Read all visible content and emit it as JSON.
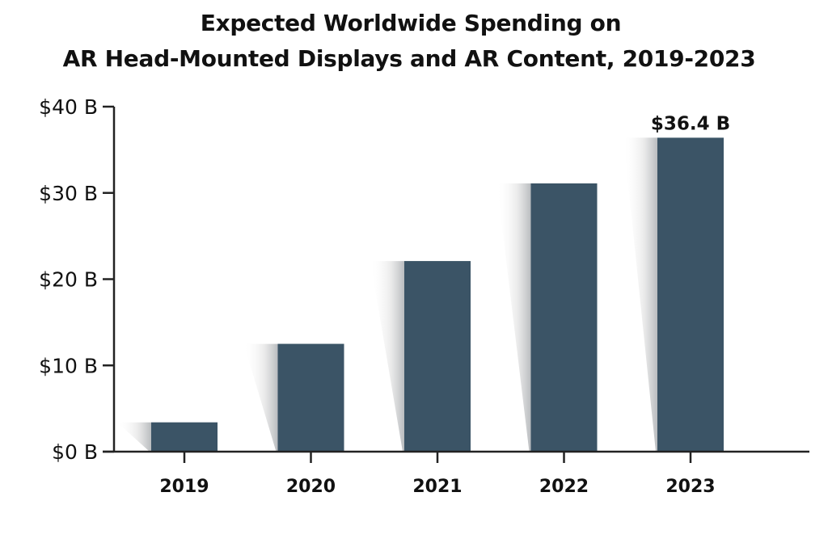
{
  "chart_data": {
    "type": "bar",
    "title": "Expected Worldwide Spending on AR Head-Mounted Displays and AR Content, 2019-2023",
    "title_lines": [
      "Expected Worldwide Spending on",
      "AR Head-Mounted Displays and AR Content, 2019-2023"
    ],
    "xlabel": "",
    "ylabel": "",
    "categories": [
      "2019",
      "2020",
      "2021",
      "2022",
      "2023"
    ],
    "values": [
      3.4,
      12.5,
      22.1,
      31.1,
      36.4
    ],
    "units": "billion USD",
    "ylim": [
      0,
      40
    ],
    "yticks": [
      0,
      10,
      20,
      30,
      40
    ],
    "ytick_labels": [
      "$0 B",
      "$10 B",
      "$20 B",
      "$30 B",
      "$40 B"
    ],
    "data_labels": [
      {
        "category": "2023",
        "text": "$36.4 B"
      }
    ],
    "grid": false,
    "legend": "none",
    "bar_color": "#3b5466",
    "axis_color": "#222222"
  }
}
